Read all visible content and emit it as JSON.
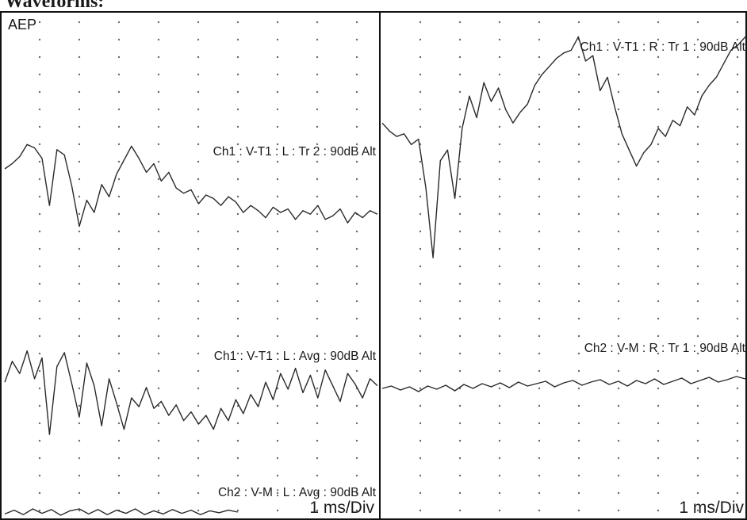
{
  "heading": "Waveforms:",
  "colors": {
    "trace": "#2a2a2a",
    "border": "#111111",
    "grid_dot": "#6a6a6a",
    "background": "#ffffff"
  },
  "chart_data": [
    {
      "type": "line",
      "panel": "left",
      "title": "AEP",
      "scale_label": "1 ms/Div",
      "x_unit": "ms",
      "xlim": [
        0,
        10
      ],
      "grid": "dotted",
      "series": [
        {
          "name": "Ch1 : V-T1 : L : Tr 2 : 90dB Alt",
          "x": [
            0,
            0.2,
            0.4,
            0.6,
            0.8,
            1.0,
            1.2,
            1.4,
            1.6,
            1.8,
            2.0,
            2.2,
            2.4,
            2.6,
            2.8,
            3.0,
            3.2,
            3.4,
            3.6,
            3.8,
            4.0,
            4.2,
            4.4,
            4.6,
            4.8,
            5.0,
            5.2,
            5.4,
            5.6,
            5.8,
            6.0,
            6.2,
            6.4,
            6.6,
            6.8,
            7.0,
            7.2,
            7.4,
            7.6,
            7.8,
            8.0,
            8.2,
            8.4,
            8.6,
            8.8,
            9.0,
            9.2,
            9.4,
            9.6,
            9.8,
            10.0
          ],
          "y": [
            0.5,
            0.8,
            1.2,
            1.9,
            1.7,
            1.1,
            -1.6,
            1.6,
            1.3,
            -0.5,
            -2.8,
            -1.3,
            -2.0,
            -0.4,
            -1.1,
            0.2,
            1.0,
            1.8,
            1.1,
            0.3,
            0.8,
            -0.2,
            0.3,
            -0.6,
            -0.9,
            -0.7,
            -1.5,
            -1.0,
            -1.2,
            -1.6,
            -1.1,
            -1.4,
            -2.0,
            -1.6,
            -1.9,
            -2.3,
            -1.7,
            -2.0,
            -1.8,
            -2.4,
            -1.9,
            -2.1,
            -1.6,
            -2.4,
            -2.2,
            -1.8,
            -2.6,
            -2.0,
            -2.3,
            -1.9,
            -2.1
          ]
        },
        {
          "name": "Ch1 : V-T1 : L : Avg : 90dB Alt",
          "x": [
            0,
            0.2,
            0.4,
            0.6,
            0.8,
            1.0,
            1.2,
            1.4,
            1.6,
            1.8,
            2.0,
            2.2,
            2.4,
            2.6,
            2.8,
            3.0,
            3.2,
            3.4,
            3.6,
            3.8,
            4.0,
            4.2,
            4.4,
            4.6,
            4.8,
            5.0,
            5.2,
            5.4,
            5.6,
            5.8,
            6.0,
            6.2,
            6.4,
            6.6,
            6.8,
            7.0,
            7.2,
            7.4,
            7.6,
            7.8,
            8.0,
            8.2,
            8.4,
            8.6,
            8.8,
            9.0,
            9.2,
            9.4,
            9.6,
            9.8,
            10.0
          ],
          "y": [
            0.4,
            1.6,
            0.9,
            2.2,
            0.6,
            1.8,
            -2.6,
            1.3,
            2.1,
            0.3,
            -1.6,
            1.5,
            0.2,
            -2.1,
            0.6,
            -0.8,
            -2.3,
            -0.5,
            -1.0,
            0.1,
            -1.1,
            -0.7,
            -1.5,
            -0.9,
            -1.8,
            -1.3,
            -2.0,
            -1.5,
            -2.3,
            -1.1,
            -1.8,
            -0.6,
            -1.4,
            -0.3,
            -1.0,
            0.4,
            -0.6,
            0.9,
            0.0,
            1.2,
            -0.2,
            0.8,
            -0.5,
            1.1,
            0.2,
            -0.7,
            0.9,
            0.3,
            -0.5,
            0.6,
            0.2
          ]
        },
        {
          "name": "Ch2 : V-M : L : Avg : 90dB Alt",
          "x": [
            0,
            0.25,
            0.5,
            0.75,
            1.0,
            1.25,
            1.5,
            1.75,
            2.0,
            2.25,
            2.5,
            2.75,
            3.0,
            3.25,
            3.5,
            3.75,
            4.0,
            4.25,
            4.5,
            4.75,
            5.0,
            5.25,
            5.5,
            5.75,
            6.0,
            6.25
          ],
          "y": [
            -0.3,
            0.3,
            -0.4,
            0.5,
            -0.2,
            0.4,
            -0.5,
            0.2,
            0.5,
            -0.3,
            0.4,
            -0.4,
            0.3,
            -0.2,
            0.5,
            -0.4,
            0.2,
            -0.3,
            0.4,
            -0.2,
            0.3,
            -0.4,
            0.2,
            -0.1,
            0.3,
            0.0
          ]
        }
      ]
    },
    {
      "type": "line",
      "panel": "right",
      "scale_label": "1 ms/Div",
      "x_unit": "ms",
      "xlim": [
        0,
        10
      ],
      "grid": "dotted",
      "series": [
        {
          "name": "Ch1 : V-T1 : R : Tr 1 : 90dB Alt",
          "x": [
            0,
            0.2,
            0.4,
            0.6,
            0.8,
            1.0,
            1.2,
            1.4,
            1.6,
            1.8,
            2.0,
            2.2,
            2.4,
            2.6,
            2.8,
            3.0,
            3.2,
            3.4,
            3.6,
            3.8,
            4.0,
            4.2,
            4.4,
            4.6,
            4.8,
            5.0,
            5.2,
            5.4,
            5.6,
            5.8,
            6.0,
            6.2,
            6.4,
            6.6,
            6.8,
            7.0,
            7.2,
            7.4,
            7.6,
            7.8,
            8.0,
            8.2,
            8.4,
            8.6,
            8.8,
            9.0,
            9.2,
            9.4,
            9.6,
            9.8,
            10.0
          ],
          "y": [
            0.2,
            -0.1,
            -0.3,
            -0.2,
            -0.6,
            -0.4,
            -2.2,
            -4.8,
            -1.2,
            -0.8,
            -2.6,
            0.0,
            1.2,
            0.4,
            1.7,
            1.0,
            1.5,
            0.7,
            0.2,
            0.6,
            0.9,
            1.6,
            2.0,
            2.3,
            2.6,
            2.8,
            2.9,
            3.4,
            2.5,
            2.7,
            1.4,
            1.9,
            0.8,
            -0.2,
            -0.8,
            -1.4,
            -0.9,
            -0.6,
            0.0,
            -0.3,
            0.3,
            0.1,
            0.8,
            0.5,
            1.2,
            1.6,
            1.9,
            2.4,
            2.9,
            3.1,
            3.4
          ]
        },
        {
          "name": "Ch2 : V-M : R : Tr 1 : 90dB Alt",
          "x": [
            0,
            0.25,
            0.5,
            0.75,
            1.0,
            1.25,
            1.5,
            1.75,
            2.0,
            2.25,
            2.5,
            2.75,
            3.0,
            3.25,
            3.5,
            3.75,
            4.0,
            4.25,
            4.5,
            4.75,
            5.0,
            5.25,
            5.5,
            5.75,
            6.0,
            6.25,
            6.5,
            6.75,
            7.0,
            7.25,
            7.5,
            7.75,
            8.0,
            8.25,
            8.5,
            8.75,
            9.0,
            9.25,
            9.5,
            9.75,
            10.0
          ],
          "y": [
            0.0,
            0.3,
            -0.2,
            0.2,
            -0.4,
            0.3,
            -0.1,
            0.4,
            -0.3,
            0.5,
            0.0,
            0.6,
            0.2,
            0.7,
            0.1,
            0.8,
            0.3,
            0.6,
            0.9,
            0.2,
            0.7,
            1.0,
            0.4,
            0.8,
            1.1,
            0.5,
            0.9,
            0.3,
            1.0,
            0.6,
            1.2,
            0.5,
            0.9,
            1.3,
            0.6,
            1.0,
            1.4,
            0.8,
            1.1,
            1.5,
            1.2
          ]
        }
      ]
    }
  ]
}
